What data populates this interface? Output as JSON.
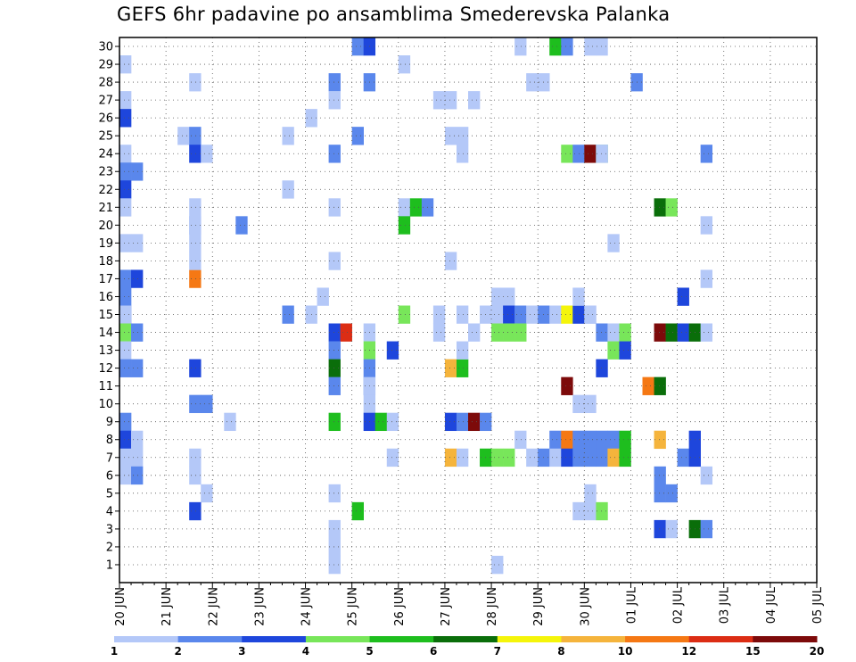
{
  "chart_data": {
    "type": "heatmap",
    "title": "GEFS 6hr padavine po ansamblima Smederevska Palanka",
    "xlabel": "",
    "ylabel": "",
    "x_tick_labels": [
      "20 JUN",
      "21 JUN",
      "22 JUN",
      "23 JUN",
      "24 JUN",
      "25 JUN",
      "26 JUN",
      "27 JUN",
      "28 JUN",
      "29 JUN",
      "30 JUN",
      "01 JUL",
      "02 JUL",
      "03 JUL",
      "04 JUL",
      "05 JUL"
    ],
    "y_tick_labels": [
      "1",
      "2",
      "3",
      "4",
      "5",
      "6",
      "7",
      "8",
      "9",
      "10",
      "11",
      "12",
      "13",
      "14",
      "15",
      "16",
      "17",
      "18",
      "19",
      "20",
      "21",
      "22",
      "23",
      "24",
      "25",
      "26",
      "27",
      "28",
      "29",
      "30"
    ],
    "time_steps_per_day": 4,
    "legend": {
      "boundary_labels": [
        "1",
        "2",
        "3",
        "4",
        "5",
        "6",
        "7",
        "8",
        "10",
        "12",
        "15",
        "20"
      ],
      "colors": [
        "#b4c8f8",
        "#5a87ec",
        "#1e46dc",
        "#78e65a",
        "#1ebe1e",
        "#0a6e0a",
        "#f5f50a",
        "#f5b43c",
        "#f57814",
        "#dc2d14",
        "#7d0a0a"
      ]
    },
    "grid": true,
    "cells": [
      [
        29,
        1,
        1
      ],
      [
        28,
        7,
        1
      ],
      [
        27,
        1,
        1
      ],
      [
        26,
        1,
        3
      ],
      [
        25,
        6,
        1
      ],
      [
        25,
        7,
        2
      ],
      [
        24,
        1,
        1
      ],
      [
        24,
        7,
        3
      ],
      [
        24,
        8,
        1
      ],
      [
        23,
        1,
        2
      ],
      [
        23,
        2,
        2
      ],
      [
        22,
        1,
        3
      ],
      [
        21,
        1,
        1
      ],
      [
        19,
        1,
        1
      ],
      [
        19,
        2,
        1
      ],
      [
        17,
        1,
        2
      ],
      [
        17,
        2,
        3
      ],
      [
        17,
        7,
        9
      ],
      [
        16,
        1,
        2
      ],
      [
        15,
        1,
        2
      ],
      [
        15,
        1,
        1
      ],
      [
        14,
        1,
        4
      ],
      [
        14,
        2,
        2
      ],
      [
        13,
        1,
        1
      ],
      [
        12,
        1,
        2
      ],
      [
        12,
        2,
        2
      ],
      [
        12,
        7,
        3
      ],
      [
        10,
        7,
        2
      ],
      [
        10,
        8,
        2
      ],
      [
        9,
        1,
        2
      ],
      [
        8,
        1,
        3
      ],
      [
        8,
        2,
        1
      ],
      [
        7,
        1,
        1
      ],
      [
        7,
        2,
        1
      ],
      [
        6,
        1,
        1
      ],
      [
        6,
        2,
        2
      ],
      [
        5,
        8,
        1
      ],
      [
        4,
        7,
        3
      ],
      [
        20,
        7,
        1
      ],
      [
        20,
        7,
        1
      ],
      [
        20,
        7,
        1
      ],
      [
        21,
        7,
        1
      ],
      [
        19,
        7,
        1
      ],
      [
        18,
        7,
        1
      ],
      [
        6,
        7,
        1
      ],
      [
        7,
        7,
        1
      ],
      [
        20,
        11,
        2
      ],
      [
        9,
        10,
        1
      ],
      [
        26,
        17,
        1
      ],
      [
        25,
        15,
        1
      ],
      [
        22,
        15,
        1
      ],
      [
        15,
        15,
        2
      ],
      [
        15,
        17,
        1
      ],
      [
        14,
        19,
        3
      ],
      [
        14,
        20,
        10
      ],
      [
        16,
        18,
        1
      ],
      [
        28,
        19,
        2
      ],
      [
        27,
        19,
        1
      ],
      [
        24,
        19,
        2
      ],
      [
        21,
        19,
        1
      ],
      [
        18,
        19,
        1
      ],
      [
        13,
        19,
        2
      ],
      [
        12,
        19,
        6
      ],
      [
        11,
        19,
        2
      ],
      [
        9,
        19,
        5
      ],
      [
        3,
        19,
        1
      ],
      [
        2,
        19,
        1
      ],
      [
        1,
        19,
        1
      ],
      [
        5,
        19,
        1
      ],
      [
        30,
        21,
        2
      ],
      [
        30,
        22,
        3
      ],
      [
        28,
        22,
        2
      ],
      [
        25,
        21,
        2
      ],
      [
        14,
        22,
        1
      ],
      [
        13,
        22,
        4
      ],
      [
        12,
        22,
        2
      ],
      [
        11,
        22,
        2
      ],
      [
        11,
        22,
        1
      ],
      [
        10,
        22,
        1
      ],
      [
        9,
        22,
        3
      ],
      [
        9,
        23,
        5
      ],
      [
        9,
        24,
        1
      ],
      [
        7,
        24,
        1
      ],
      [
        4,
        21,
        5
      ],
      [
        29,
        25,
        1
      ],
      [
        21,
        25,
        1
      ],
      [
        21,
        26,
        5
      ],
      [
        21,
        27,
        2
      ],
      [
        20,
        25,
        5
      ],
      [
        15,
        25,
        4
      ],
      [
        13,
        24,
        3
      ],
      [
        12,
        29,
        8
      ],
      [
        12,
        30,
        5
      ],
      [
        14,
        31,
        1
      ],
      [
        9,
        29,
        3
      ],
      [
        9,
        30,
        2
      ],
      [
        9,
        31,
        11
      ],
      [
        9,
        32,
        2
      ],
      [
        7,
        29,
        8
      ],
      [
        7,
        30,
        1
      ],
      [
        27,
        28,
        1
      ],
      [
        27,
        29,
        1
      ],
      [
        27,
        31,
        1
      ],
      [
        25,
        29,
        1
      ],
      [
        25,
        30,
        1
      ],
      [
        24,
        30,
        1
      ],
      [
        18,
        29,
        1
      ],
      [
        15,
        28,
        1
      ],
      [
        14,
        28,
        1
      ],
      [
        15,
        30,
        1
      ],
      [
        15,
        32,
        1
      ],
      [
        13,
        30,
        1
      ],
      [
        1,
        33,
        1
      ],
      [
        16,
        33,
        1
      ],
      [
        16,
        34,
        1
      ],
      [
        15,
        33,
        1
      ],
      [
        15,
        34,
        3
      ],
      [
        15,
        35,
        2
      ],
      [
        15,
        36,
        1
      ],
      [
        15,
        37,
        2
      ],
      [
        15,
        38,
        1
      ],
      [
        15,
        39,
        7
      ],
      [
        15,
        40,
        3
      ],
      [
        15,
        41,
        1
      ],
      [
        14,
        33,
        4
      ],
      [
        14,
        34,
        4
      ],
      [
        14,
        35,
        4
      ],
      [
        7,
        32,
        5
      ],
      [
        7,
        33,
        4
      ],
      [
        7,
        34,
        4
      ],
      [
        8,
        35,
        1
      ],
      [
        7,
        36,
        1
      ],
      [
        7,
        37,
        2
      ],
      [
        30,
        35,
        1
      ],
      [
        30,
        38,
        5
      ],
      [
        30,
        39,
        2
      ],
      [
        30,
        41,
        1
      ],
      [
        30,
        42,
        1
      ],
      [
        28,
        36,
        1
      ],
      [
        28,
        37,
        1
      ],
      [
        24,
        39,
        4
      ],
      [
        24,
        40,
        2
      ],
      [
        24,
        41,
        11
      ],
      [
        24,
        42,
        5
      ],
      [
        24,
        42,
        1
      ],
      [
        16,
        40,
        1
      ],
      [
        15,
        41,
        1
      ],
      [
        14,
        42,
        2
      ],
      [
        14,
        43,
        1
      ],
      [
        14,
        44,
        4
      ],
      [
        13,
        43,
        4
      ],
      [
        13,
        44,
        3
      ],
      [
        12,
        42,
        3
      ],
      [
        11,
        39,
        11
      ],
      [
        10,
        40,
        1
      ],
      [
        10,
        41,
        1
      ],
      [
        8,
        38,
        2
      ],
      [
        8,
        39,
        9
      ],
      [
        8,
        40,
        2
      ],
      [
        8,
        41,
        2
      ],
      [
        8,
        42,
        2
      ],
      [
        8,
        43,
        2
      ],
      [
        8,
        44,
        5
      ],
      [
        7,
        38,
        1
      ],
      [
        7,
        39,
        3
      ],
      [
        7,
        40,
        2
      ],
      [
        7,
        41,
        2
      ],
      [
        7,
        42,
        2
      ],
      [
        7,
        43,
        8
      ],
      [
        7,
        44,
        5
      ],
      [
        5,
        41,
        1
      ],
      [
        4,
        40,
        1
      ],
      [
        4,
        41,
        1
      ],
      [
        4,
        42,
        4
      ],
      [
        28,
        45,
        2
      ],
      [
        19,
        43,
        1
      ],
      [
        21,
        47,
        6
      ],
      [
        21,
        48,
        4
      ],
      [
        14,
        47,
        11
      ],
      [
        14,
        48,
        6
      ],
      [
        14,
        49,
        3
      ],
      [
        14,
        50,
        6
      ],
      [
        14,
        51,
        1
      ],
      [
        11,
        46,
        9
      ],
      [
        11,
        47,
        6
      ],
      [
        8,
        47,
        8
      ],
      [
        7,
        49,
        2
      ],
      [
        7,
        50,
        3
      ],
      [
        8,
        50,
        3
      ],
      [
        6,
        47,
        2
      ],
      [
        5,
        47,
        2
      ],
      [
        5,
        48,
        2
      ],
      [
        3,
        47,
        3
      ],
      [
        3,
        48,
        1
      ],
      [
        3,
        50,
        6
      ],
      [
        3,
        51,
        2
      ],
      [
        24,
        51,
        2
      ],
      [
        20,
        51,
        1
      ],
      [
        17,
        51,
        1
      ],
      [
        6,
        51,
        1
      ],
      [
        16,
        49,
        3
      ],
      [
        24,
        42,
        1
      ]
    ]
  }
}
